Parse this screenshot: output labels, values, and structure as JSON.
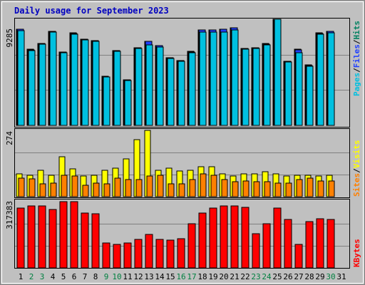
{
  "title": "Daily usage for September 2023",
  "colors": {
    "frame_bg": "#c0c0c0",
    "title": "#0000c0",
    "pages": "#00c0e0",
    "files": "#2040ff",
    "hits": "#008060",
    "visits": "#ffff00",
    "sites": "#ff8000",
    "kbytes": "#ff0000",
    "weekday": "#000000",
    "weekend": "#008040"
  },
  "chart_data": [
    {
      "type": "bar",
      "panel": "hits-files-pages",
      "categories": [
        "1",
        "2",
        "3",
        "4",
        "5",
        "6",
        "7",
        "8",
        "9",
        "10",
        "11",
        "12",
        "13",
        "14",
        "15",
        "16",
        "17",
        "18",
        "19",
        "20",
        "21",
        "22",
        "23",
        "24",
        "25",
        "26",
        "27",
        "28",
        "29",
        "30",
        "31"
      ],
      "weekend_days": [
        "2",
        "3",
        "9",
        "10",
        "16",
        "17",
        "23",
        "24",
        "30"
      ],
      "ylim": [
        0,
        9285
      ],
      "yticks": [
        "9285"
      ],
      "legend": [
        "Pages",
        "/",
        "Files",
        "/",
        "Hits"
      ],
      "series": [
        {
          "name": "Hits",
          "values": [
            8420,
            6640,
            7180,
            8230,
            6440,
            8080,
            7540,
            7440,
            4270,
            6560,
            3990,
            6790,
            7350,
            6980,
            5940,
            5680,
            6460,
            8370,
            8370,
            8430,
            8560,
            6730,
            6790,
            7150,
            9285,
            5630,
            6650,
            5270,
            8080,
            8250,
            0
          ]
        },
        {
          "name": "Files",
          "values": [
            8400,
            6620,
            7170,
            8210,
            6420,
            8060,
            7520,
            7420,
            4260,
            6540,
            3980,
            6770,
            7330,
            6960,
            5920,
            5660,
            6440,
            8350,
            8350,
            8410,
            8540,
            6710,
            6770,
            7130,
            9285,
            5610,
            6630,
            5250,
            8060,
            8230,
            0
          ]
        },
        {
          "name": "Pages",
          "values": [
            8300,
            6540,
            7100,
            8190,
            6360,
            8000,
            7460,
            7360,
            4210,
            6480,
            3930,
            6700,
            7070,
            6850,
            5880,
            5620,
            6360,
            8140,
            8150,
            8180,
            8330,
            6660,
            6700,
            7050,
            9285,
            5550,
            6360,
            5200,
            7970,
            8120,
            0
          ]
        }
      ]
    },
    {
      "type": "bar",
      "panel": "visits-sites",
      "categories": [
        "1",
        "2",
        "3",
        "4",
        "5",
        "6",
        "7",
        "8",
        "9",
        "10",
        "11",
        "12",
        "13",
        "14",
        "15",
        "16",
        "17",
        "18",
        "19",
        "20",
        "21",
        "22",
        "23",
        "24",
        "25",
        "26",
        "27",
        "28",
        "29",
        "30",
        "31"
      ],
      "ylim": [
        0,
        274
      ],
      "yticks": [
        "274"
      ],
      "legend": [
        "Sites",
        "/",
        "Visits"
      ],
      "series": [
        {
          "name": "Visits",
          "values": [
            94,
            89,
            108,
            89,
            164,
            114,
            86,
            89,
            108,
            119,
            157,
            236,
            274,
            110,
            117,
            107,
            109,
            124,
            124,
            94,
            84,
            94,
            94,
            103,
            94,
            84,
            89,
            89,
            84,
            89,
            0
          ]
        },
        {
          "name": "Sites",
          "values": [
            77,
            73,
            54,
            57,
            87,
            85,
            48,
            56,
            53,
            78,
            72,
            71,
            86,
            89,
            54,
            53,
            70,
            93,
            88,
            70,
            62,
            66,
            63,
            61,
            56,
            56,
            70,
            76,
            64,
            65,
            0
          ]
        }
      ]
    },
    {
      "type": "bar",
      "panel": "kbytes",
      "categories": [
        "1",
        "2",
        "3",
        "4",
        "5",
        "6",
        "7",
        "8",
        "9",
        "10",
        "11",
        "12",
        "13",
        "14",
        "15",
        "16",
        "17",
        "18",
        "19",
        "20",
        "21",
        "22",
        "23",
        "24",
        "25",
        "26",
        "27",
        "28",
        "29",
        "30",
        "31"
      ],
      "ylim": [
        0,
        317383
      ],
      "yticks": [
        "317383"
      ],
      "legend": [
        "KBytes"
      ],
      "series": [
        {
          "name": "KBytes",
          "values": [
            286000,
            297000,
            297000,
            280000,
            317383,
            317383,
            263000,
            261000,
            120000,
            111000,
            118000,
            135000,
            159000,
            135000,
            132000,
            140000,
            212000,
            263000,
            286000,
            298000,
            297000,
            289000,
            164000,
            210000,
            287000,
            232000,
            114000,
            223000,
            234000,
            232000,
            0
          ]
        }
      ]
    }
  ]
}
